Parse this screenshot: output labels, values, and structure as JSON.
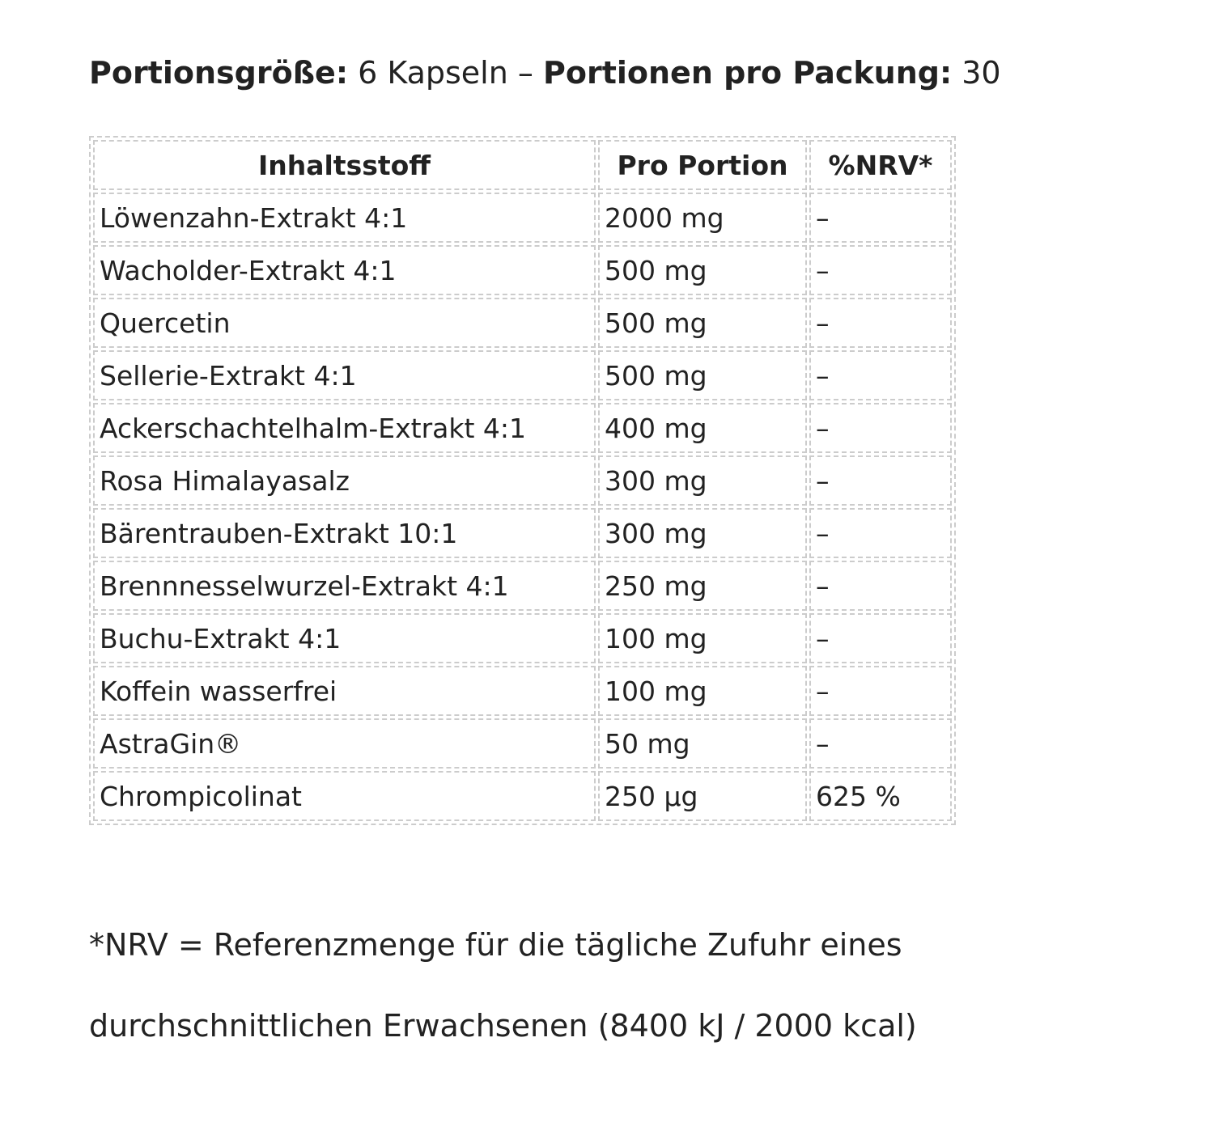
{
  "header": {
    "parts": [
      {
        "text": "Portionsgröße:",
        "bold": true
      },
      {
        "text": " 6 Kapseln – ",
        "bold": false
      },
      {
        "text": "Portionen pro Packung:",
        "bold": true
      },
      {
        "text": " 30",
        "bold": false
      }
    ]
  },
  "table": {
    "columns": [
      "Inhaltsstoff",
      "Pro Portion",
      "%NRV*"
    ],
    "rows": [
      [
        "Löwenzahn-Extrakt 4:1",
        "2000 mg",
        "–"
      ],
      [
        "Wacholder-Extrakt 4:1",
        "500 mg",
        "–"
      ],
      [
        "Quercetin",
        "500 mg",
        "–"
      ],
      [
        "Sellerie-Extrakt 4:1",
        "500 mg",
        "–"
      ],
      [
        "Ackerschachtelhalm-Extrakt 4:1",
        "400 mg",
        "–"
      ],
      [
        "Rosa Himalayasalz",
        "300 mg",
        "–"
      ],
      [
        "Bärentrauben-Extrakt 10:1",
        "300 mg",
        "–"
      ],
      [
        "Brennnesselwurzel-Extrakt 4:1",
        "250 mg",
        "–"
      ],
      [
        "Buchu-Extrakt 4:1",
        "100 mg",
        "–"
      ],
      [
        "Koffein wasserfrei",
        "100 mg",
        "–"
      ],
      [
        "AstraGin®",
        "50 mg",
        "–"
      ],
      [
        "Chrompicolinat",
        "250 µg",
        "625 %"
      ]
    ]
  },
  "footnote": {
    "lines": [
      "*NRV = Referenzmenge für die tägliche Zufuhr eines",
      "durchschnittlichen Erwachsenen (8400 kJ / 2000 kcal)"
    ]
  }
}
